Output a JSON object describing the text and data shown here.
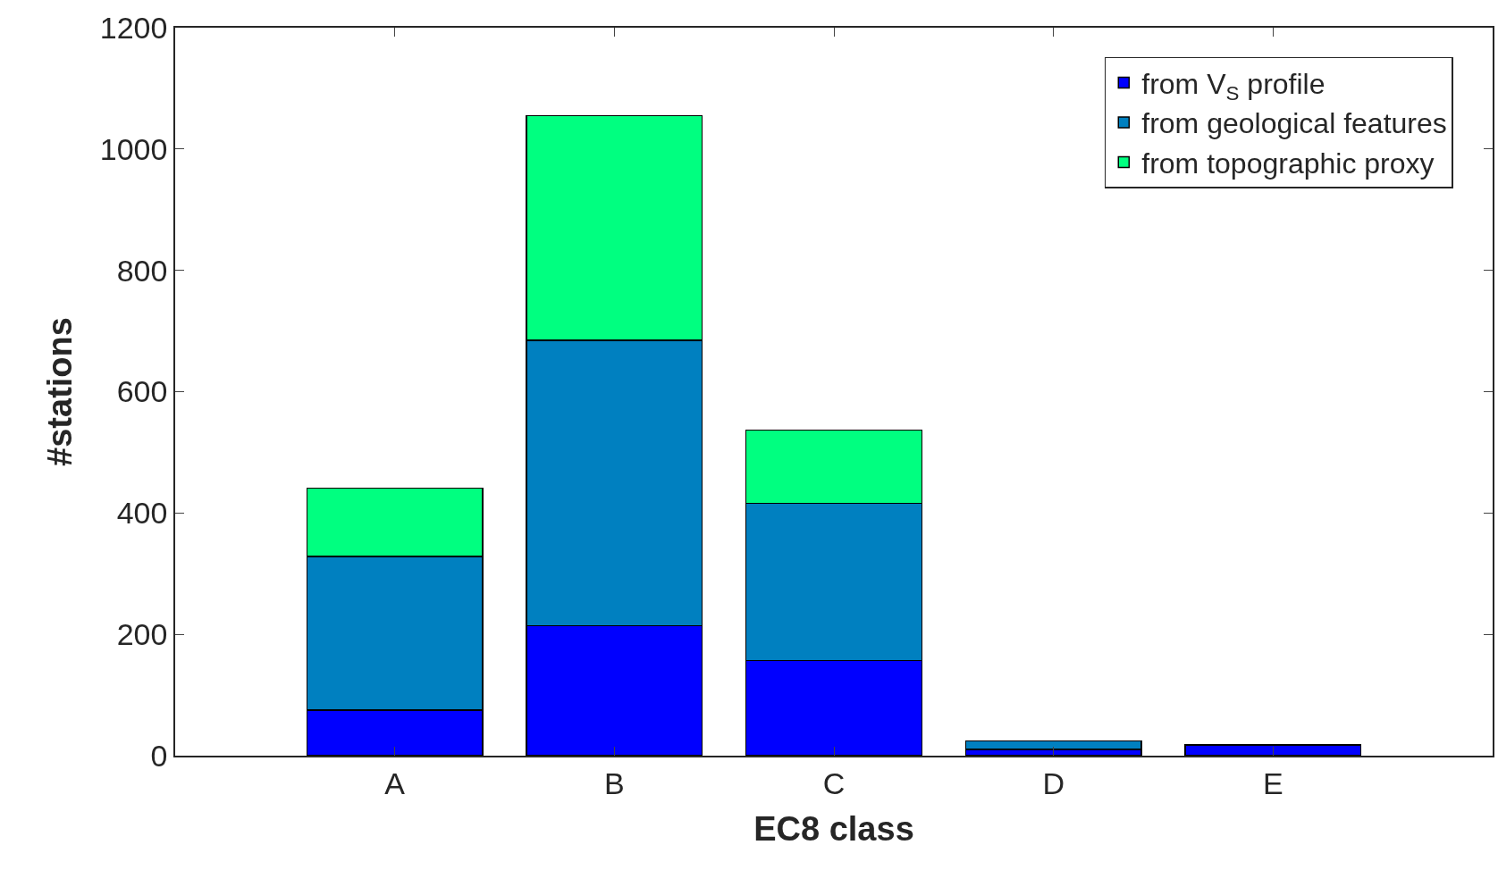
{
  "chart_data": {
    "type": "bar",
    "stacked": true,
    "xlabel": "EC8 class",
    "ylabel": "#stations",
    "categories": [
      "A",
      "B",
      "C",
      "D",
      "E"
    ],
    "series": [
      {
        "name": "from V$_{S}$ profile",
        "color": "#0000ff",
        "values": [
          75,
          214,
          157,
          10,
          18
        ]
      },
      {
        "name": "from geological features",
        "color": "#0080c0",
        "values": [
          253,
          471,
          259,
          14,
          null
        ]
      },
      {
        "name": "from topographic proxy",
        "color": "#00ff80",
        "values": [
          113,
          370,
          121,
          null,
          null
        ]
      }
    ],
    "ylim": [
      0,
      1200
    ],
    "yticks": [
      0,
      200,
      400,
      600,
      800,
      1000,
      1200
    ],
    "legend": "top right"
  }
}
